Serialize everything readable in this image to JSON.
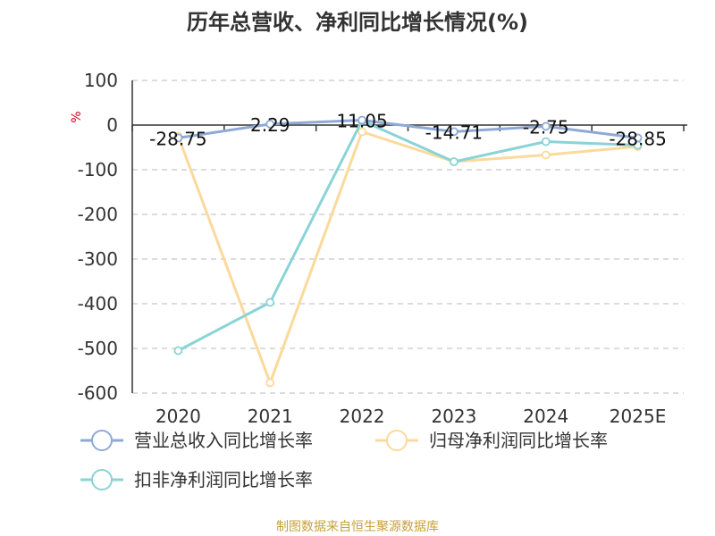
{
  "title": "历年总营收、净利同比增长情况(%)",
  "unit_label": "%",
  "source": "制图数据来自恒生聚源数据库",
  "chart_data": {
    "type": "line",
    "categories": [
      "2020",
      "2021",
      "2022",
      "2023",
      "2024",
      "2025E"
    ],
    "ylim": [
      -600,
      100
    ],
    "yticks": [
      100,
      0,
      -100,
      -200,
      -300,
      -400,
      -500,
      -600
    ],
    "grid": true,
    "legend_position": "bottom",
    "series": [
      {
        "name": "营业总收入同比增长率",
        "color": "#8fa9d6",
        "values": [
          -28.75,
          2.29,
          11.05,
          -14.71,
          -2.75,
          -28.85
        ],
        "labels": [
          "-28.75",
          "2.29",
          "11.05",
          "-14.71",
          "-2.75",
          "-28.85"
        ]
      },
      {
        "name": "归母净利润同比增长率",
        "color": "#fbd99b",
        "values": [
          -25,
          -577,
          -15,
          -82,
          -67,
          -48
        ]
      },
      {
        "name": "扣非净利润同比增长率",
        "color": "#8ad3d6",
        "values": [
          -505,
          -397,
          10,
          -82,
          -37,
          -45
        ]
      }
    ]
  }
}
